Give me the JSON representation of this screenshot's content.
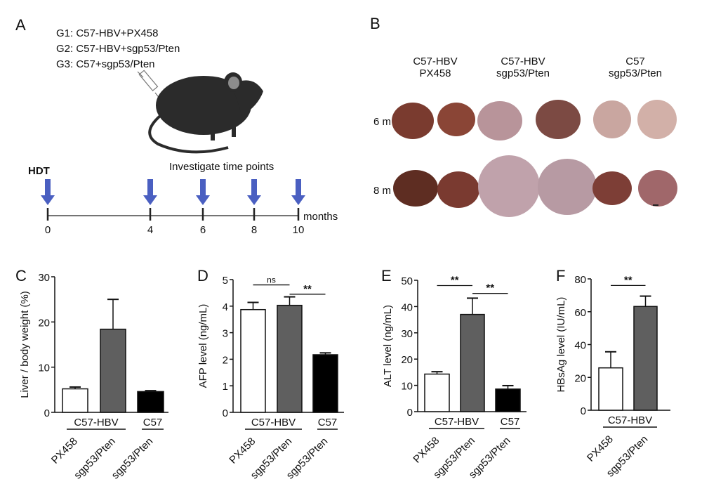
{
  "panels": {
    "a": "A",
    "b": "B",
    "c": "C",
    "d": "D",
    "e": "E",
    "f": "F"
  },
  "panel_a": {
    "groups": [
      "G1: C57-HBV+PX458",
      "G2: C57-HBV+sgp53/Pten",
      "G3: C57+sgp53/Pten"
    ],
    "hdt_label": "HDT",
    "timeline_title": "Investigate time points",
    "time_points": [
      "0",
      "4",
      "6",
      "8",
      "10"
    ],
    "unit": "months",
    "arrow_color": "#4a5fc1"
  },
  "panel_b": {
    "columns": [
      [
        "C57-HBV",
        "PX458"
      ],
      [
        "C57-HBV",
        "sgp53/Pten"
      ],
      [
        "C57",
        "sgp53/Pten"
      ]
    ],
    "rows": [
      "6 m",
      "8 m"
    ]
  },
  "chart_data": [
    {
      "type": "bar",
      "panel": "C",
      "ylabel": "Liver / body weight (%)",
      "ylim": [
        0,
        30
      ],
      "yticks": [
        "0",
        "10",
        "20",
        "30"
      ],
      "categories": [
        "PX458",
        "sgp53/Pten",
        "sgp53/Pten"
      ],
      "groups": [
        {
          "label": "C57-HBV",
          "span": [
            0,
            1
          ]
        },
        {
          "label": "C57",
          "span": [
            2,
            2
          ]
        }
      ],
      "values": [
        5.2,
        18.4,
        4.6
      ],
      "errors": [
        0.4,
        6.6,
        0.2
      ],
      "colors": [
        "#ffffff",
        "#5f5f5f",
        "#000000"
      ],
      "significance": []
    },
    {
      "type": "bar",
      "panel": "D",
      "ylabel": "AFP level (ng/mL)",
      "ylim": [
        0,
        5
      ],
      "yticks": [
        "0",
        "1",
        "2",
        "3",
        "4",
        "5"
      ],
      "categories": [
        "PX458",
        "sgp53/Pten",
        "sgp53/Pten"
      ],
      "groups": [
        {
          "label": "C57-HBV",
          "span": [
            0,
            1
          ]
        },
        {
          "label": "C57",
          "span": [
            2,
            2
          ]
        }
      ],
      "values": [
        3.87,
        4.03,
        2.17
      ],
      "errors": [
        0.27,
        0.32,
        0.07
      ],
      "colors": [
        "#ffffff",
        "#5f5f5f",
        "#000000"
      ],
      "significance": [
        {
          "pair": [
            0,
            1
          ],
          "label": "ns",
          "y": 4.8
        },
        {
          "pair": [
            1,
            2
          ],
          "label": "**",
          "y": 4.45
        }
      ]
    },
    {
      "type": "bar",
      "panel": "E",
      "ylabel": "ALT level (ng/mL)",
      "ylim": [
        0,
        50
      ],
      "yticks": [
        "0",
        "10",
        "20",
        "30",
        "40",
        "50"
      ],
      "categories": [
        "PX458",
        "sgp53/Pten",
        "sgp53/Pten"
      ],
      "groups": [
        {
          "label": "C57-HBV",
          "span": [
            0,
            1
          ]
        },
        {
          "label": "C57",
          "span": [
            2,
            2
          ]
        }
      ],
      "values": [
        14.3,
        37.0,
        8.6
      ],
      "errors": [
        0.9,
        6.2,
        1.3
      ],
      "colors": [
        "#ffffff",
        "#5f5f5f",
        "#000000"
      ],
      "significance": [
        {
          "pair": [
            0,
            1
          ],
          "label": "**",
          "y": 48
        },
        {
          "pair": [
            1,
            2
          ],
          "label": "**",
          "y": 45
        }
      ]
    },
    {
      "type": "bar",
      "panel": "F",
      "ylabel": "HBsAg level (IU/mL)",
      "ylim": [
        0,
        80
      ],
      "yticks": [
        "0",
        "20",
        "40",
        "60",
        "80"
      ],
      "categories": [
        "PX458",
        "sgp53/Pten"
      ],
      "groups": [
        {
          "label": "C57-HBV",
          "span": [
            0,
            1
          ]
        }
      ],
      "values": [
        25.8,
        63.2
      ],
      "errors": [
        9.8,
        6.3
      ],
      "colors": [
        "#ffffff",
        "#5f5f5f"
      ],
      "significance": [
        {
          "pair": [
            0,
            1
          ],
          "label": "**",
          "y": 76
        }
      ]
    }
  ]
}
